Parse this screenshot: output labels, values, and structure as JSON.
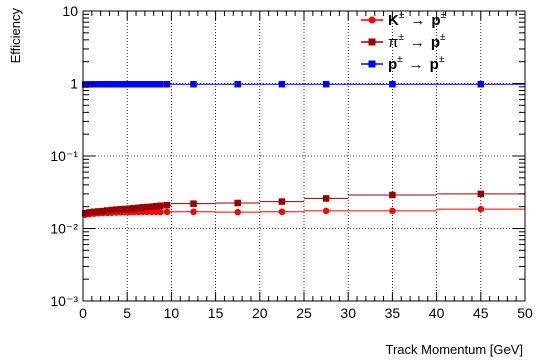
{
  "chart_data": {
    "type": "scatter",
    "xlabel": "Track Momentum [GeV]",
    "ylabel": "Efficiency",
    "xlim": [
      0,
      50
    ],
    "ylim": [
      0.001,
      10
    ],
    "yscale": "log",
    "grid": true,
    "legend_position": "top-right",
    "x_ticks": [
      0,
      5,
      10,
      15,
      20,
      25,
      30,
      35,
      40,
      45,
      50
    ],
    "x_tick_labels": [
      "0",
      "5",
      "10",
      "15",
      "20",
      "25",
      "30",
      "35",
      "40",
      "45",
      "50"
    ],
    "y_tick_labels": {
      "10": "10",
      "1": "1",
      "0.1": "10⁻¹",
      "0.01": "10⁻²",
      "0.001": "10⁻³"
    },
    "series": [
      {
        "name_lhs": "K",
        "name_rhs": "p",
        "name_sup": "±",
        "name_arrow": "→",
        "color": "#ff0000",
        "marker": "circle",
        "bin_edges": [
          0,
          0.5,
          1,
          1.5,
          2,
          2.5,
          3,
          3.5,
          4,
          4.5,
          5,
          5.5,
          6,
          6.5,
          7,
          7.5,
          8,
          8.5,
          9,
          10,
          15,
          20,
          25,
          30,
          40,
          50
        ],
        "y": [
          0.0155,
          0.0158,
          0.016,
          0.0162,
          0.0163,
          0.0164,
          0.0165,
          0.0166,
          0.0167,
          0.0168,
          0.0168,
          0.0169,
          0.0169,
          0.017,
          0.017,
          0.017,
          0.017,
          0.0169,
          0.017,
          0.017,
          0.0168,
          0.017,
          0.0175,
          0.0175,
          0.0185
        ]
      },
      {
        "name_lhs": "π",
        "name_rhs": "p",
        "name_sup": "±",
        "name_arrow": "→",
        "color": "#990000",
        "marker": "square",
        "bin_edges": [
          0,
          0.5,
          1,
          1.5,
          2,
          2.5,
          3,
          3.5,
          4,
          4.5,
          5,
          5.5,
          6,
          6.5,
          7,
          7.5,
          8,
          8.5,
          9,
          10,
          15,
          20,
          25,
          30,
          40,
          50
        ],
        "y": [
          0.0163,
          0.0167,
          0.017,
          0.0172,
          0.0174,
          0.0177,
          0.018,
          0.0182,
          0.0184,
          0.0186,
          0.0188,
          0.019,
          0.0193,
          0.0196,
          0.0198,
          0.02,
          0.0203,
          0.0206,
          0.021,
          0.022,
          0.0225,
          0.0235,
          0.026,
          0.029,
          0.03
        ]
      },
      {
        "name_lhs": "p",
        "name_rhs": "p",
        "name_sup": "±",
        "name_arrow": "→",
        "color": "#0000ff",
        "marker": "square",
        "bin_edges": [
          0,
          0.5,
          1,
          1.5,
          2,
          2.5,
          3,
          3.5,
          4,
          4.5,
          5,
          5.5,
          6,
          6.5,
          7,
          7.5,
          8,
          8.5,
          9,
          10,
          15,
          20,
          25,
          30,
          40,
          50
        ],
        "y": [
          0.97,
          0.975,
          0.976,
          0.977,
          0.977,
          0.977,
          0.977,
          0.977,
          0.977,
          0.977,
          0.977,
          0.977,
          0.977,
          0.977,
          0.977,
          0.977,
          0.977,
          0.977,
          0.977,
          0.977,
          0.978,
          0.978,
          0.978,
          0.978,
          0.978
        ]
      }
    ]
  }
}
